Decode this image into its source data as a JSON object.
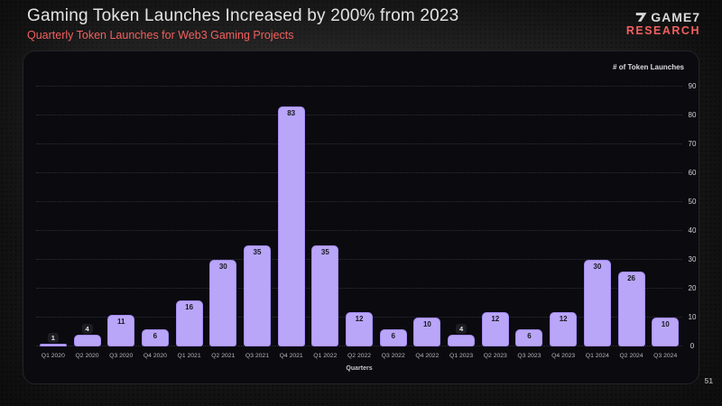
{
  "page": {
    "title": "Gaming Token Launches Increased by 200% from 2023",
    "subtitle": "Quarterly Token Launches for Web3 Gaming Projects",
    "page_number": "51"
  },
  "logo": {
    "brand": "GAME7",
    "division": "RESEARCH"
  },
  "colors": {
    "accent": "#f2605f",
    "title_text": "#e4e4e4",
    "panel_background": "#0a0a0f",
    "bar_fill": "#b9a6f8",
    "bar_border": "#a58bf3",
    "bar_value_text": "#17171f",
    "badge_background": "#1d1d24"
  },
  "chart_data": {
    "type": "bar",
    "title": "Gaming Token Launches Increased by 200% from 2023",
    "subtitle": "Quarterly Token Launches for Web3 Gaming Projects",
    "categories": [
      "Q1 2020",
      "Q2 2020",
      "Q3 2020",
      "Q4 2020",
      "Q1 2021",
      "Q2 2021",
      "Q3 2021",
      "Q4 2021",
      "Q1 2022",
      "Q2 2022",
      "Q3 2022",
      "Q4 2022",
      "Q1 2023",
      "Q2 2023",
      "Q3 2023",
      "Q4 2023",
      "Q1 2024",
      "Q2 2024",
      "Q3 2024"
    ],
    "values": [
      1,
      4,
      11,
      6,
      16,
      30,
      35,
      83,
      35,
      12,
      6,
      10,
      4,
      12,
      6,
      12,
      30,
      26,
      10
    ],
    "xlabel": "Quarters",
    "ylabel": "# of Token Launches",
    "ylim": [
      0,
      90
    ],
    "ytick_step": 10,
    "grid": "horizontal-dotted",
    "y_axis_position": "right",
    "bar_label_style": "value inside bar top; values below 6 shown as dark badge above bar",
    "inside_label_min_value": 6
  }
}
